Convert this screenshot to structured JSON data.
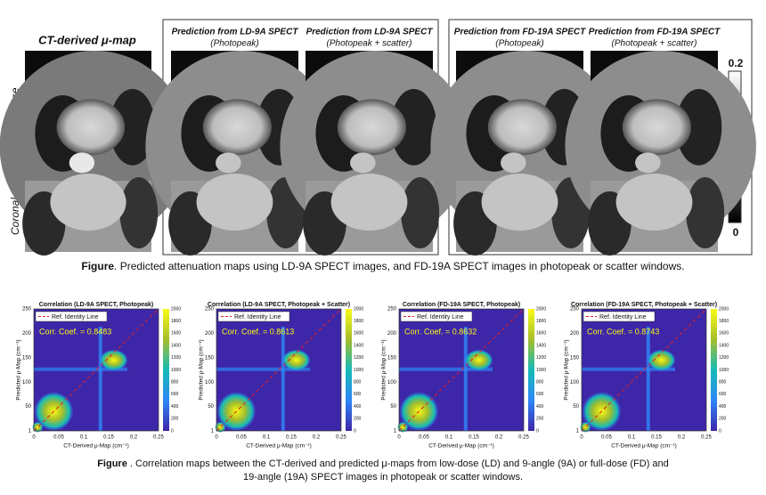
{
  "figure1": {
    "row_header": "CT-derived μ-map",
    "groups": [
      {
        "columns": [
          {
            "title": "Prediction from LD-9A SPECT",
            "subtitle": "(Photopeak)"
          },
          {
            "title": "Prediction from LD-9A SPECT",
            "subtitle": "(Photopeak + scatter)"
          }
        ]
      },
      {
        "columns": [
          {
            "title": "Prediction from FD-19A SPECT",
            "subtitle": "(Photopeak)"
          },
          {
            "title": "Prediction from FD-19A SPECT",
            "subtitle": "(Photopeak + scatter)"
          }
        ]
      }
    ],
    "row_labels": [
      "Transverse",
      "Coronal"
    ],
    "colorbar": {
      "max": "0.2",
      "min": "0"
    },
    "caption": {
      "label": "Figure",
      "text": ". Predicted attenuation maps using LD-9A SPECT images, and FD-19A SPECT images in photopeak or scatter windows."
    }
  },
  "figure2": {
    "plots": [
      {
        "title": "Correlation (LD-9A SPECT, Photopeak)",
        "legend": "Ref. Identity Line",
        "coef": "Corr. Coef. = 0.8483"
      },
      {
        "title": "Correlation (LD-9A SPECT, Photopeak + Scatter)",
        "legend": "Ref. Identity Line",
        "coef": "Corr. Coef. = 0.8613"
      },
      {
        "title": "Correlation (FD-19A SPECT, Photopeak)",
        "legend": "Ref. Identity Line",
        "coef": "Corr. Coef. = 0.8632"
      },
      {
        "title": "Correlation (FD-19A SPECT, Photopeak + Scatter)",
        "legend": "Ref. Identity Line",
        "coef": "Corr. Coef. = 0.8743"
      }
    ],
    "xlabel": "CT-Derived μ-Map (cm⁻¹)",
    "ylabel": "Predicted μ-Map (cm⁻¹)",
    "xticks": [
      "0",
      "0.05",
      "0.1",
      "0.15",
      "0.2",
      "0.25"
    ],
    "yticks": [
      "1",
      "50",
      "100",
      "150",
      "200",
      "250"
    ],
    "cticks": [
      "0",
      "200",
      "400",
      "600",
      "800",
      "1000",
      "1200",
      "1400",
      "1600",
      "1800",
      "2000"
    ],
    "caption": {
      "label": "Figure",
      "line1": " . Correlation maps between the CT-derived and predicted μ-maps from low-dose (LD) and 9-angle (9A) or full-dose (FD) and",
      "line2": "19-angle (19A) SPECT images in photopeak or scatter windows."
    }
  }
}
